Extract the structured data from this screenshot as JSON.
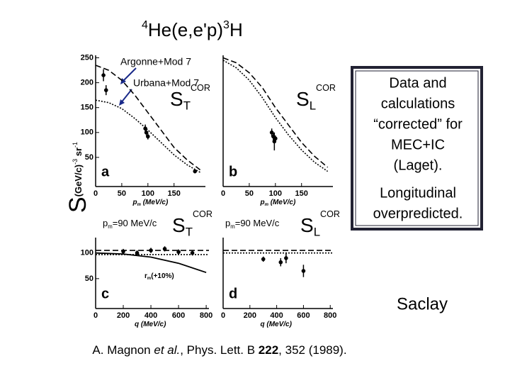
{
  "title": {
    "pre": "4",
    "main": "He(e,e'p)",
    "mid": "3",
    "end": "H"
  },
  "annotations": [
    "Argonne+Mod 7",
    "Urbana+Mod 7"
  ],
  "ylabel": {
    "main": "S",
    "unit": "(GeV/c)",
    "exp1": "-3",
    "unit2": " sr",
    "exp2": "-1"
  },
  "box": {
    "lines": [
      "Data and",
      "calculations",
      "“corrected” for",
      "MEC+IC",
      "(Laget)."
    ],
    "lines2": [
      "Longitudinal",
      "overpredicted."
    ]
  },
  "saclay": "Saclay",
  "citation": {
    "a": "A. Magnon ",
    "b": "et al.",
    "c": ", Phys. Lett. B ",
    "d": "222",
    "e": ", 352 (1989)."
  },
  "chart_data": [
    {
      "type": "line",
      "tag": "a",
      "symbol": {
        "main": "S",
        "sub": "T",
        "sup": "COR"
      },
      "xlabel": {
        "main": "p",
        "sub": "m",
        "rest": " (MeV/c)"
      },
      "xlim": [
        0,
        210
      ],
      "xticks": [
        0,
        50,
        100,
        150
      ],
      "ylim": [
        0,
        255
      ],
      "yticks": [
        50,
        100,
        150,
        200,
        250
      ],
      "series": [
        {
          "dash": "dashed",
          "color": "#000",
          "x": [
            0,
            25,
            50,
            75,
            100,
            125,
            150,
            175,
            200
          ],
          "values": [
            235,
            225,
            205,
            175,
            140,
            105,
            70,
            45,
            25
          ]
        },
        {
          "dash": "dotted",
          "color": "#000",
          "x": [
            0,
            25,
            50,
            75,
            100,
            125,
            150,
            175,
            200
          ],
          "values": [
            165,
            160,
            148,
            128,
            105,
            80,
            55,
            35,
            20
          ]
        }
      ],
      "points": {
        "x": [
          15,
          20,
          95,
          97,
          100,
          190
        ],
        "values": [
          215,
          185,
          108,
          100,
          92,
          22
        ],
        "errors": [
          12,
          10,
          8,
          6,
          6,
          4
        ]
      }
    },
    {
      "type": "line",
      "tag": "b",
      "symbol": {
        "main": "S",
        "sub": "L",
        "sup": "COR"
      },
      "xlabel": {
        "main": "p",
        "sub": "m",
        "rest": " (MeV/c)"
      },
      "xlim": [
        0,
        210
      ],
      "xticks": [
        0,
        50,
        100,
        150
      ],
      "ylim": [
        0,
        255
      ],
      "series": [
        {
          "dash": "dashed",
          "color": "#000",
          "x": [
            0,
            25,
            50,
            75,
            100,
            125,
            150,
            175,
            200
          ],
          "values": [
            250,
            240,
            220,
            190,
            150,
            115,
            80,
            52,
            30
          ]
        },
        {
          "dash": "dotted",
          "color": "#000",
          "x": [
            0,
            25,
            50,
            75,
            100,
            125,
            150,
            175,
            200
          ],
          "values": [
            245,
            230,
            205,
            170,
            130,
            95,
            65,
            40,
            22
          ]
        }
      ],
      "points": {
        "x": [
          93,
          96,
          98,
          100
        ],
        "values": [
          100,
          92,
          82,
          88
        ],
        "errors": [
          8,
          8,
          18,
          6
        ]
      }
    },
    {
      "type": "line",
      "tag": "c",
      "symbol": {
        "main": "S",
        "sub": "T",
        "sup": "COR"
      },
      "note": {
        "main": "p",
        "sub": "m",
        "rest": "=90 MeV/c"
      },
      "curve_label": {
        "main": "r",
        "sub": "m",
        "rest": "(+10%)"
      },
      "xlabel": {
        "main": "q",
        "rest": " (MeV/c)"
      },
      "xlim": [
        0,
        820
      ],
      "xticks": [
        0,
        200,
        400,
        600,
        800
      ],
      "ylim": [
        0,
        130
      ],
      "yticks": [
        50,
        100
      ],
      "series": [
        {
          "dash": "dashed",
          "color": "#000",
          "x": [
            0,
            820
          ],
          "values": [
            105,
            105
          ]
        },
        {
          "dash": "dotted",
          "color": "#000",
          "x": [
            0,
            820
          ],
          "values": [
            97,
            97
          ]
        },
        {
          "dash": "solid",
          "color": "#000",
          "x": [
            0,
            200,
            400,
            600,
            800
          ],
          "values": [
            100,
            98,
            92,
            80,
            62
          ]
        }
      ],
      "points": {
        "x": [
          200,
          300,
          400,
          500,
          600,
          700
        ],
        "values": [
          103,
          100,
          105,
          108,
          102,
          100
        ],
        "errors": [
          5,
          5,
          5,
          5,
          5,
          5
        ]
      }
    },
    {
      "type": "line",
      "tag": "d",
      "symbol": {
        "main": "S",
        "sub": "L",
        "sup": "COR"
      },
      "note": {
        "main": "p",
        "sub": "m",
        "rest": "=90 MeV/c"
      },
      "xlabel": {
        "main": "q",
        "rest": " (MeV/c)"
      },
      "xlim": [
        0,
        820
      ],
      "xticks": [
        0,
        200,
        400,
        600,
        800
      ],
      "ylim": [
        0,
        130
      ],
      "series": [
        {
          "dash": "dashed",
          "color": "#000",
          "x": [
            0,
            820
          ],
          "values": [
            105,
            105
          ]
        },
        {
          "dash": "dotted",
          "color": "#000",
          "x": [
            0,
            820
          ],
          "values": [
            100,
            100
          ]
        }
      ],
      "points": {
        "x": [
          300,
          430,
          470,
          600
        ],
        "values": [
          88,
          82,
          90,
          65
        ],
        "errors": [
          5,
          8,
          10,
          12
        ]
      }
    }
  ]
}
